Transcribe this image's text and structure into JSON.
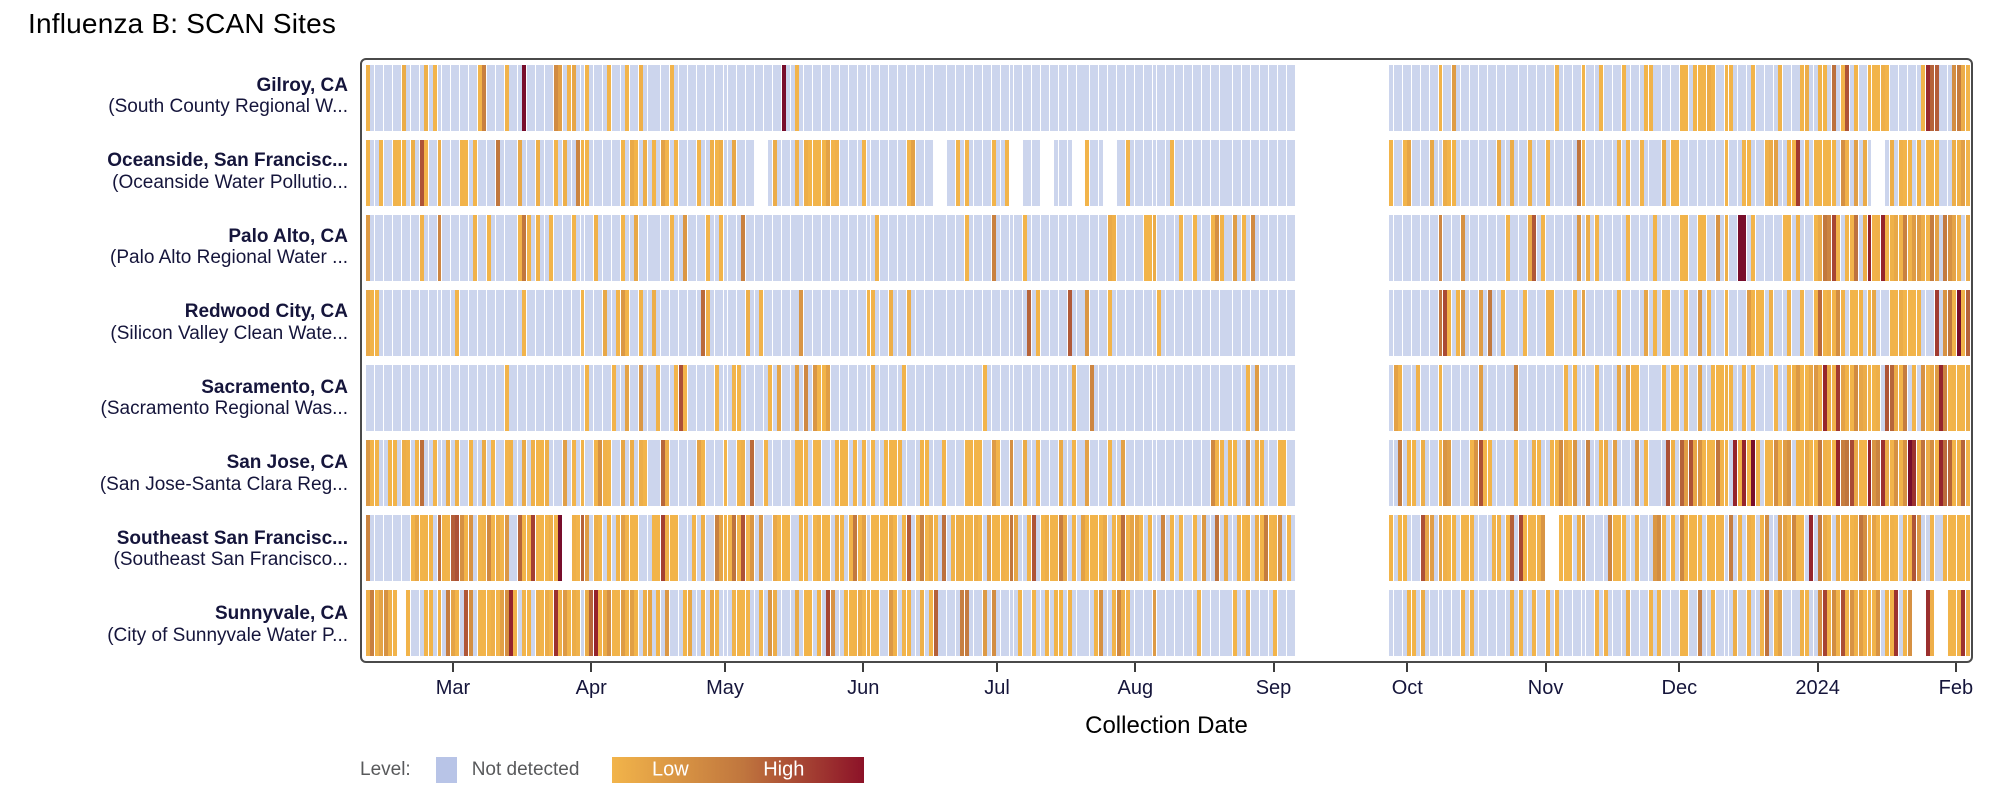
{
  "title": "Influenza B: SCAN Sites",
  "axis": {
    "label": "Collection Date",
    "ticks": [
      {
        "label": "Mar",
        "day": 19
      },
      {
        "label": "Apr",
        "day": 50
      },
      {
        "label": "May",
        "day": 80
      },
      {
        "label": "Jun",
        "day": 111
      },
      {
        "label": "Jul",
        "day": 141
      },
      {
        "label": "Aug",
        "day": 172
      },
      {
        "label": "Sep",
        "day": 203
      },
      {
        "label": "Oct",
        "day": 233
      },
      {
        "label": "Nov",
        "day": 264
      },
      {
        "label": "Dec",
        "day": 294
      },
      {
        "label": "2024",
        "day": 325
      },
      {
        "label": "Feb",
        "day": 356
      }
    ]
  },
  "legend": {
    "level_label": "Level:",
    "not_detected_label": "Not detected",
    "low_label": "Low",
    "high_label": "High"
  },
  "colors": {
    "not_detected": "#ccd5ed",
    "swatch": "#b8c4e7",
    "low": "#f2b44a",
    "mid": "#c0763e",
    "high": "#8c1228",
    "dark_mark": "#780d2b",
    "frame": "#4a4a4a",
    "tick": "#3c3c3c",
    "label_text": "#15153b",
    "legend_text": "#58595b"
  },
  "timeline": {
    "days": 359,
    "start_date": "2023-02-10",
    "end_date": "2024-02-03",
    "sampling_gap": [
      208,
      228
    ]
  },
  "sites": [
    {
      "city": "Gilroy, CA",
      "facility": "(South County Regional W...",
      "seed": 101,
      "segments": [
        [
          0,
          18,
          0.06,
          1
        ],
        [
          19,
          32,
          0.18,
          1
        ],
        [
          33,
          43,
          0.35,
          1
        ],
        [
          44,
          79,
          0.14,
          1
        ],
        [
          80,
          97,
          0.12,
          1
        ],
        [
          98,
          207,
          0.03,
          1
        ],
        [
          229,
          242,
          0.08,
          1
        ],
        [
          243,
          263,
          0.05,
          1
        ],
        [
          264,
          293,
          0.14,
          1
        ],
        [
          294,
          324,
          0.32,
          1
        ],
        [
          325,
          349,
          0.55,
          1.2
        ],
        [
          350,
          358,
          0.9,
          1.5
        ]
      ],
      "marks": [
        35,
        93
      ],
      "missing": []
    },
    {
      "city": "Oceanside, San Francisc...",
      "facility": "(Oceanside Water Pollutio...",
      "seed": 202,
      "segments": [
        [
          0,
          8,
          0.3,
          1
        ],
        [
          9,
          18,
          0.45,
          1
        ],
        [
          19,
          49,
          0.3,
          1
        ],
        [
          50,
          79,
          0.35,
          1
        ],
        [
          80,
          96,
          0.25,
          1
        ],
        [
          97,
          105,
          0.7,
          1
        ],
        [
          106,
          140,
          0.18,
          1
        ],
        [
          141,
          171,
          0.12,
          1
        ],
        [
          172,
          207,
          0.08,
          1
        ],
        [
          229,
          263,
          0.18,
          1
        ],
        [
          264,
          293,
          0.25,
          1
        ],
        [
          294,
          324,
          0.45,
          1.15
        ],
        [
          325,
          358,
          0.6,
          1.25
        ]
      ],
      "marks": [],
      "missing": [
        [
          87,
          89
        ],
        [
          127,
          129
        ],
        [
          144,
          146
        ],
        [
          151,
          153
        ],
        [
          158,
          160
        ],
        [
          165,
          167
        ],
        [
          337,
          339
        ]
      ]
    },
    {
      "city": "Palo Alto, CA",
      "facility": "(Palo Alto Regional Water ...",
      "seed": 303,
      "segments": [
        [
          0,
          18,
          0.12,
          1
        ],
        [
          19,
          31,
          0.18,
          1
        ],
        [
          32,
          41,
          0.55,
          1.1
        ],
        [
          42,
          79,
          0.15,
          1
        ],
        [
          80,
          110,
          0.12,
          1
        ],
        [
          111,
          140,
          0.08,
          1
        ],
        [
          141,
          182,
          0.12,
          1
        ],
        [
          183,
          199,
          0.3,
          1
        ],
        [
          200,
          207,
          0.1,
          1
        ],
        [
          229,
          263,
          0.15,
          1
        ],
        [
          264,
          293,
          0.3,
          1
        ],
        [
          294,
          324,
          0.45,
          1.1
        ],
        [
          325,
          358,
          0.88,
          1.6
        ]
      ],
      "marks": [
        307,
        308
      ],
      "missing": []
    },
    {
      "city": "Redwood City, CA",
      "facility": "(Silicon Valley Clean Wate...",
      "seed": 404,
      "segments": [
        [
          0,
          2,
          0.95,
          1
        ],
        [
          3,
          18,
          0.05,
          1
        ],
        [
          19,
          49,
          0.16,
          1
        ],
        [
          50,
          67,
          0.3,
          1.1
        ],
        [
          68,
          110,
          0.15,
          1
        ],
        [
          111,
          127,
          0.18,
          1
        ],
        [
          128,
          171,
          0.08,
          1
        ],
        [
          172,
          207,
          0.12,
          1
        ],
        [
          229,
          263,
          0.16,
          1
        ],
        [
          264,
          293,
          0.2,
          1
        ],
        [
          294,
          324,
          0.32,
          1
        ],
        [
          325,
          352,
          0.65,
          1.25
        ],
        [
          353,
          358,
          0.92,
          1.5
        ]
      ],
      "marks": [
        356
      ],
      "missing": []
    },
    {
      "city": "Sacramento, CA",
      "facility": "(Sacramento Regional Was...",
      "seed": 505,
      "segments": [
        [
          0,
          18,
          0.04,
          1
        ],
        [
          19,
          49,
          0.1,
          1
        ],
        [
          50,
          79,
          0.22,
          1
        ],
        [
          80,
          93,
          0.3,
          1
        ],
        [
          94,
          103,
          0.8,
          1.1
        ],
        [
          104,
          140,
          0.18,
          1
        ],
        [
          141,
          207,
          0.07,
          1
        ],
        [
          229,
          263,
          0.2,
          1
        ],
        [
          264,
          293,
          0.3,
          1
        ],
        [
          294,
          324,
          0.5,
          1.15
        ],
        [
          325,
          358,
          0.85,
          1.35
        ]
      ],
      "marks": [],
      "missing": []
    },
    {
      "city": "San Jose, CA",
      "facility": "(San Jose-Santa Clara Reg...",
      "seed": 606,
      "segments": [
        [
          0,
          49,
          0.55,
          1.1
        ],
        [
          50,
          110,
          0.5,
          1.05
        ],
        [
          111,
          140,
          0.35,
          1
        ],
        [
          141,
          171,
          0.28,
          1
        ],
        [
          172,
          207,
          0.35,
          1
        ],
        [
          229,
          263,
          0.5,
          1.1
        ],
        [
          264,
          293,
          0.75,
          1.3
        ],
        [
          294,
          324,
          0.9,
          1.45
        ],
        [
          325,
          358,
          0.95,
          1.55
        ]
      ],
      "marks": [
        310,
        345
      ],
      "missing": []
    },
    {
      "city": "Southeast San Francisc...",
      "facility": "(Southeast San Francisco...",
      "seed": 707,
      "segments": [
        [
          0,
          9,
          0.2,
          1
        ],
        [
          10,
          42,
          0.85,
          1.2
        ],
        [
          46,
          49,
          0.8,
          1.2
        ],
        [
          50,
          110,
          0.7,
          1.1
        ],
        [
          111,
          171,
          0.65,
          1.1
        ],
        [
          172,
          207,
          0.6,
          1.05
        ],
        [
          229,
          263,
          0.68,
          1.1
        ],
        [
          267,
          293,
          0.55,
          1.1
        ],
        [
          294,
          358,
          0.8,
          1.3
        ]
      ],
      "marks": [
        43
      ],
      "missing": [
        [
          44,
          45
        ],
        [
          264,
          266
        ]
      ]
    },
    {
      "city": "Sunnyvale, CA",
      "facility": "(City of Sunnyvale Water P...",
      "seed": 808,
      "segments": [
        [
          0,
          6,
          0.65,
          1
        ],
        [
          9,
          17,
          0.2,
          1
        ],
        [
          18,
          57,
          0.8,
          1.35
        ],
        [
          58,
          79,
          0.5,
          1.1
        ],
        [
          80,
          110,
          0.55,
          1.15
        ],
        [
          111,
          140,
          0.5,
          1.1
        ],
        [
          141,
          171,
          0.3,
          1
        ],
        [
          172,
          207,
          0.12,
          1
        ],
        [
          229,
          263,
          0.2,
          1
        ],
        [
          264,
          293,
          0.15,
          1
        ],
        [
          294,
          324,
          0.45,
          1.1
        ],
        [
          325,
          345,
          0.9,
          1.5
        ],
        [
          349,
          350,
          0.95,
          1.2
        ],
        [
          354,
          358,
          0.95,
          1.45
        ]
      ],
      "marks": [],
      "missing": [
        [
          7,
          8
        ],
        [
          346,
          348
        ],
        [
          351,
          353
        ]
      ]
    }
  ],
  "chart_data": {
    "type": "heatmap",
    "title": "Influenza B: SCAN Sites",
    "xlabel": "Collection Date",
    "x_tick_labels": [
      "Mar",
      "Apr",
      "May",
      "Jun",
      "Jul",
      "Aug",
      "Sep",
      "Oct",
      "Nov",
      "Dec",
      "2024",
      "Feb"
    ],
    "x_domain": [
      "2023-02-10",
      "2024-02-03"
    ],
    "y_categories": [
      "Gilroy, CA (South County Regional W...",
      "Oceanside, San Francisc... (Oceanside Water Pollutio...",
      "Palo Alto, CA (Palo Alto Regional Water ...",
      "Redwood City, CA (Silicon Valley Clean Wate...",
      "Sacramento, CA (Sacramento Regional Was...",
      "San Jose, CA (San Jose-Santa Clara Reg...",
      "Southeast San Francisc... (Southeast San Francisco...",
      "Sunnyvale, CA (City of Sunnyvale Water P..."
    ],
    "levels": [
      "Not detected",
      "Low",
      "High"
    ],
    "legend_position": "bottom-left",
    "grid": false,
    "notes": "One cell per daily wastewater sample; white = no sample. All sites show a shared sampling gap in September 2023 (days 208-228). Daily values are encoded in sites[].segments as [start_day,end_day,detection_probability,intensity] with day 0 = 2023-02-10; sites[].marks are isolated dark-red 'High' days; sites[].missing are white no-sample day ranges. Detections intensify Dec 2023 - Feb 2024 at all sites, densest at San Jose, Southeast San Francisco, Sunnyvale and Palo Alto."
  }
}
